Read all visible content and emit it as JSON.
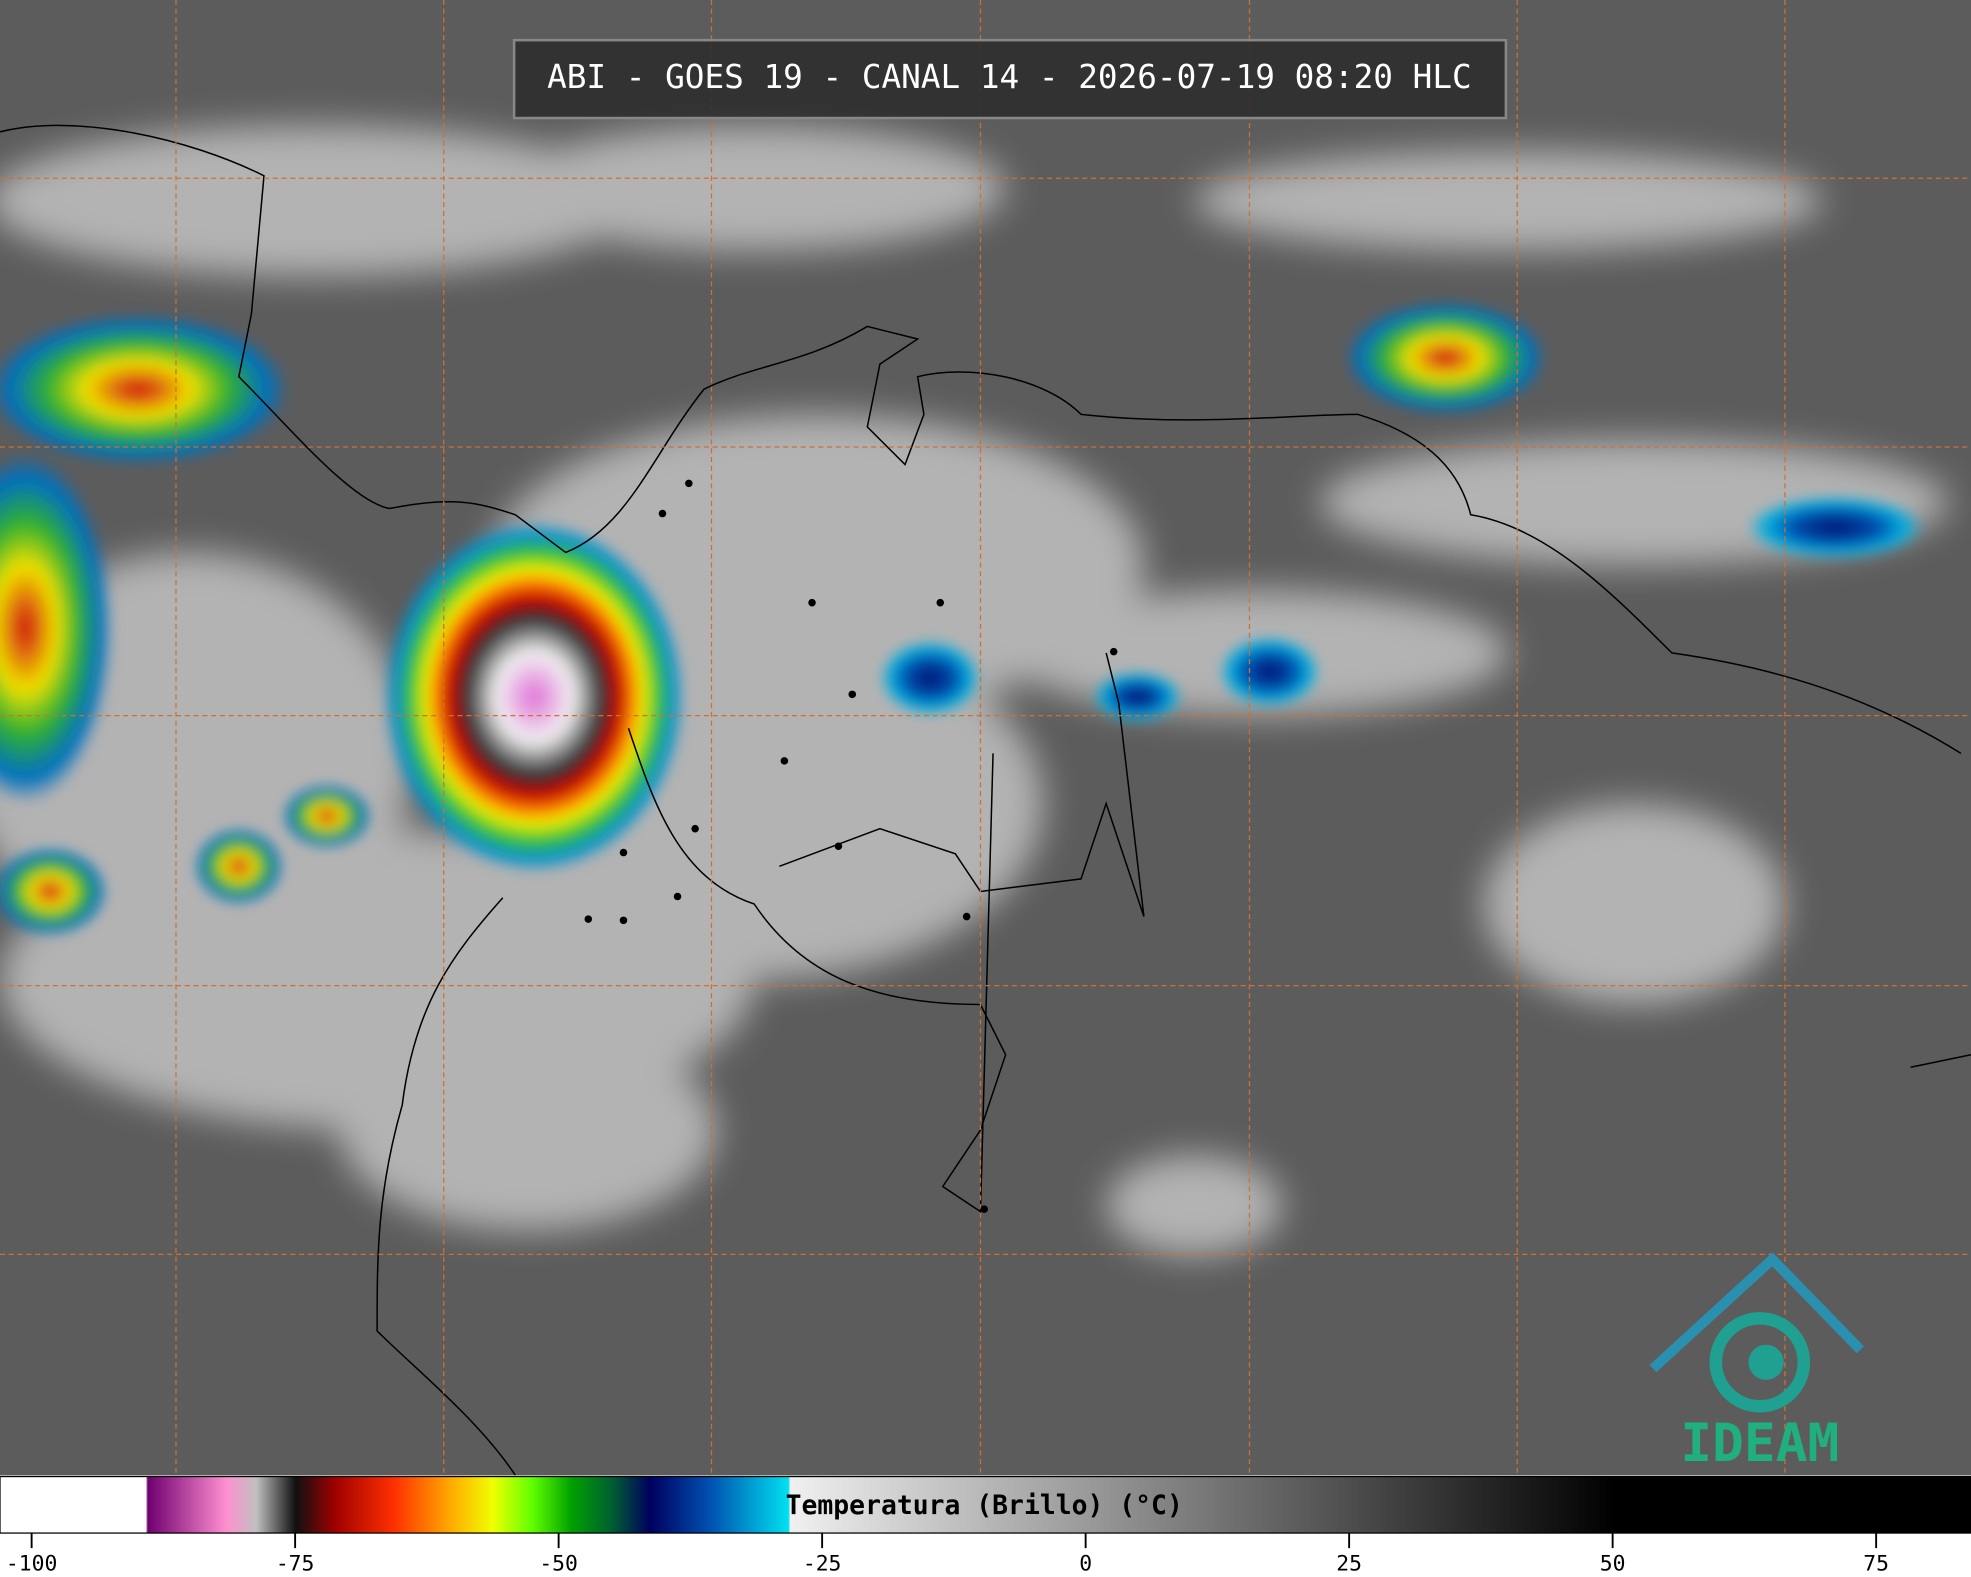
{
  "title": "ABI - GOES 19 - CANAL 14 - 2026-07-19 08:20 HLC",
  "logo": "IDEAM",
  "colorbar": {
    "label": "Temperatura (Brillo) (°C)",
    "xlim": [
      -103,
      84
    ],
    "xticks": [
      -100,
      -75,
      -50,
      -25,
      0,
      25,
      50,
      75
    ]
  }
}
